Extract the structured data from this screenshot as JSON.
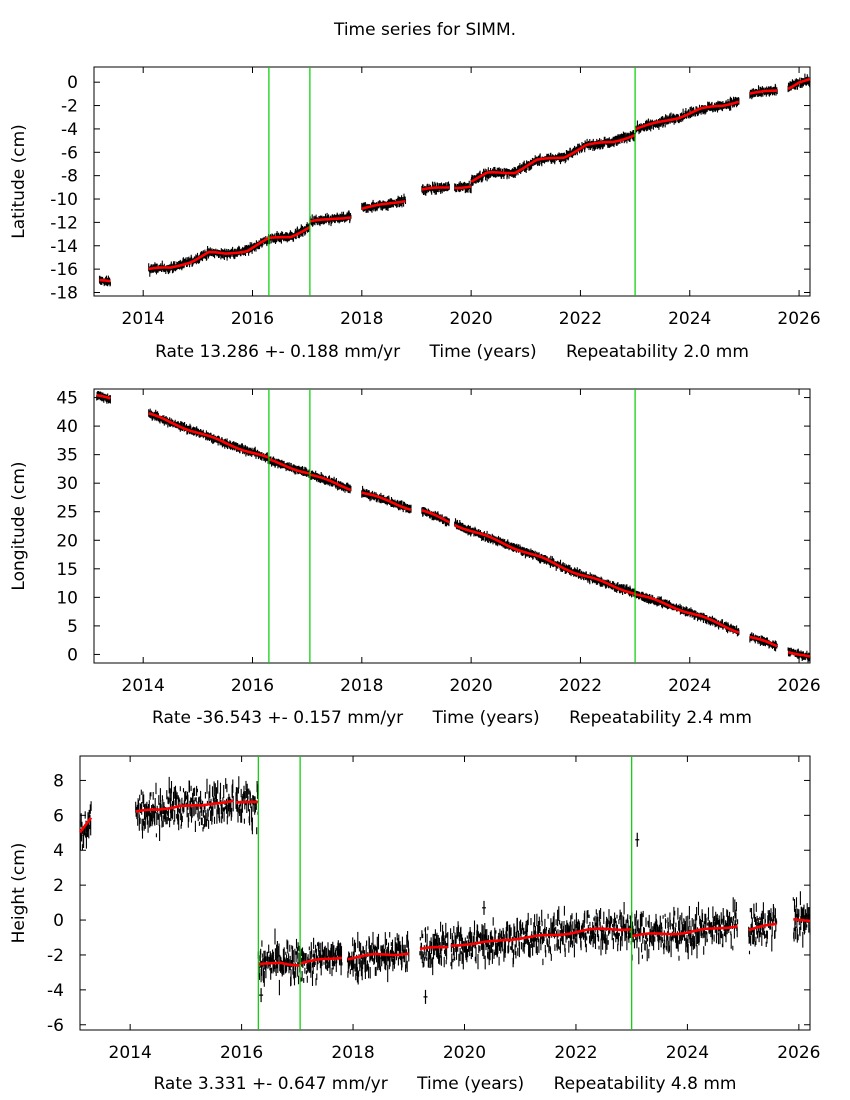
{
  "title": "Time series for SIMM.",
  "colors": {
    "data": "#000000",
    "model": "#ff0000",
    "offset_lines": "#00cc00",
    "frame": "#000000"
  },
  "chart_data": [
    {
      "type": "scatter",
      "ylabel": "Latitude (cm)",
      "xlabel": "Time (years)",
      "rate_text": "Rate 13.286 +- 0.188 mm/yr",
      "repeatability_text": "Repeatability 2.0 mm",
      "xlim": [
        2013.1,
        2026.2
      ],
      "ylim": [
        -18.3,
        1.3
      ],
      "xticks": [
        2014,
        2016,
        2018,
        2020,
        2022,
        2024,
        2026
      ],
      "yticks": [
        0,
        -2,
        -4,
        -6,
        -8,
        -10,
        -12,
        -14,
        -16,
        -18
      ],
      "offsets": [
        2016.3,
        2017.05,
        2023.0
      ],
      "segments": [
        {
          "start": 2013.2,
          "end": 2013.4,
          "points": [
            [
              2013.2,
              -17.0
            ],
            [
              2013.4,
              -17.1
            ]
          ]
        },
        {
          "start": 2014.1,
          "end": 2016.3,
          "points": [
            [
              2014.1,
              -16.0
            ],
            [
              2014.5,
              -15.9
            ],
            [
              2014.9,
              -15.3
            ],
            [
              2015.2,
              -14.6
            ],
            [
              2015.5,
              -14.7
            ],
            [
              2015.9,
              -14.4
            ],
            [
              2016.3,
              -13.4
            ]
          ]
        },
        {
          "start": 2016.3,
          "end": 2017.05,
          "points": [
            [
              2016.3,
              -13.4
            ],
            [
              2016.7,
              -13.2
            ],
            [
              2017.05,
              -12.4
            ]
          ]
        },
        {
          "start": 2017.05,
          "end": 2017.8,
          "points": [
            [
              2017.05,
              -11.9
            ],
            [
              2017.4,
              -11.8
            ],
            [
              2017.8,
              -11.5
            ]
          ]
        },
        {
          "start": 2018.0,
          "end": 2018.8,
          "points": [
            [
              2018.0,
              -10.8
            ],
            [
              2018.4,
              -10.5
            ],
            [
              2018.8,
              -10.1
            ]
          ]
        },
        {
          "start": 2019.1,
          "end": 2019.6,
          "points": [
            [
              2019.1,
              -9.2
            ],
            [
              2019.6,
              -9.0
            ]
          ]
        },
        {
          "start": 2019.7,
          "end": 2020.0,
          "points": [
            [
              2019.7,
              -9.0
            ],
            [
              2020.0,
              -8.9
            ]
          ]
        },
        {
          "start": 2020.0,
          "end": 2023.0,
          "points": [
            [
              2020.0,
              -8.5
            ],
            [
              2020.3,
              -7.8
            ],
            [
              2020.8,
              -7.7
            ],
            [
              2021.2,
              -6.7
            ],
            [
              2021.7,
              -6.4
            ],
            [
              2022.1,
              -5.4
            ],
            [
              2022.6,
              -5.1
            ],
            [
              2023.0,
              -4.5
            ]
          ]
        },
        {
          "start": 2023.0,
          "end": 2024.9,
          "points": [
            [
              2023.0,
              -4.0
            ],
            [
              2023.4,
              -3.5
            ],
            [
              2023.8,
              -3.0
            ],
            [
              2024.2,
              -2.3
            ],
            [
              2024.6,
              -2.0
            ],
            [
              2024.9,
              -1.6
            ]
          ]
        },
        {
          "start": 2025.1,
          "end": 2025.6,
          "points": [
            [
              2025.1,
              -1.0
            ],
            [
              2025.6,
              -0.7
            ]
          ]
        },
        {
          "start": 2025.8,
          "end": 2026.2,
          "points": [
            [
              2025.8,
              -0.5
            ],
            [
              2026.0,
              0.0
            ],
            [
              2026.2,
              0.2
            ]
          ]
        }
      ],
      "scatter": 0.25
    },
    {
      "type": "scatter",
      "ylabel": "Longitude (cm)",
      "xlabel": "Time (years)",
      "rate_text": "Rate -36.543 +- 0.157 mm/yr",
      "repeatability_text": "Repeatability 2.4 mm",
      "xlim": [
        2013.1,
        2026.2
      ],
      "ylim": [
        -1.5,
        46.5
      ],
      "xticks": [
        2014,
        2016,
        2018,
        2020,
        2022,
        2024,
        2026
      ],
      "yticks": [
        0,
        5,
        10,
        15,
        20,
        25,
        30,
        35,
        40,
        45
      ],
      "offsets": [
        2016.3,
        2017.05,
        2023.0
      ],
      "segments": [
        {
          "start": 2013.15,
          "end": 2013.4,
          "points": [
            [
              2013.15,
              45.3
            ],
            [
              2013.4,
              44.7
            ]
          ]
        },
        {
          "start": 2014.1,
          "end": 2016.3,
          "points": [
            [
              2014.1,
              42.2
            ],
            [
              2014.5,
              40.6
            ],
            [
              2015.0,
              38.9
            ],
            [
              2015.5,
              37.0
            ],
            [
              2016.0,
              35.4
            ],
            [
              2016.3,
              34.3
            ]
          ]
        },
        {
          "start": 2016.3,
          "end": 2017.05,
          "points": [
            [
              2016.3,
              34.0
            ],
            [
              2017.05,
              31.7
            ]
          ]
        },
        {
          "start": 2017.05,
          "end": 2017.8,
          "points": [
            [
              2017.05,
              31.5
            ],
            [
              2017.8,
              29.0
            ]
          ]
        },
        {
          "start": 2018.0,
          "end": 2018.9,
          "points": [
            [
              2018.0,
              28.4
            ],
            [
              2018.9,
              25.5
            ]
          ]
        },
        {
          "start": 2019.1,
          "end": 2019.6,
          "points": [
            [
              2019.1,
              25.2
            ],
            [
              2019.6,
              23.2
            ]
          ]
        },
        {
          "start": 2019.7,
          "end": 2023.0,
          "points": [
            [
              2019.7,
              22.8
            ],
            [
              2020.5,
              19.8
            ],
            [
              2021.3,
              16.8
            ],
            [
              2022.0,
              14.0
            ],
            [
              2022.6,
              12.0
            ],
            [
              2023.0,
              10.7
            ]
          ]
        },
        {
          "start": 2023.0,
          "end": 2024.9,
          "points": [
            [
              2023.0,
              10.6
            ],
            [
              2023.6,
              8.7
            ],
            [
              2024.2,
              6.6
            ],
            [
              2024.9,
              4.0
            ]
          ]
        },
        {
          "start": 2025.1,
          "end": 2025.6,
          "points": [
            [
              2025.1,
              3.0
            ],
            [
              2025.6,
              1.5
            ]
          ]
        },
        {
          "start": 2025.8,
          "end": 2026.2,
          "points": [
            [
              2025.8,
              0.6
            ],
            [
              2026.2,
              -0.5
            ]
          ]
        }
      ],
      "scatter": 0.35
    },
    {
      "type": "scatter",
      "ylabel": "Height (cm)",
      "xlabel": "Time (years)",
      "rate_text": "Rate 3.331 +- 0.647 mm/yr",
      "repeatability_text": "Repeatability 4.8 mm",
      "xlim": [
        2013.1,
        2026.2
      ],
      "ylim": [
        -6.3,
        9.4
      ],
      "xticks": [
        2014,
        2016,
        2018,
        2020,
        2022,
        2024,
        2026
      ],
      "yticks": [
        8,
        6,
        4,
        2,
        0,
        -2,
        -4,
        -6
      ],
      "offsets": [
        2016.3,
        2017.05,
        2023.0
      ],
      "segments": [
        {
          "start": 2013.1,
          "end": 2013.3,
          "points": [
            [
              2013.1,
              5.0
            ],
            [
              2013.3,
              5.8
            ]
          ]
        },
        {
          "start": 2014.1,
          "end": 2015.85,
          "points": [
            [
              2014.1,
              6.2
            ],
            [
              2014.5,
              6.3
            ],
            [
              2014.9,
              6.6
            ],
            [
              2015.3,
              6.5
            ],
            [
              2015.85,
              6.9
            ]
          ]
        },
        {
          "start": 2015.9,
          "end": 2016.3,
          "points": [
            [
              2015.9,
              6.8
            ],
            [
              2016.3,
              6.7
            ]
          ]
        },
        {
          "start": 2016.3,
          "end": 2017.05,
          "points": [
            [
              2016.3,
              -2.6
            ],
            [
              2016.7,
              -2.4
            ],
            [
              2017.05,
              -2.6
            ]
          ]
        },
        {
          "start": 2017.05,
          "end": 2017.8,
          "points": [
            [
              2017.05,
              -2.5
            ],
            [
              2017.4,
              -2.3
            ],
            [
              2017.8,
              -2.1
            ]
          ]
        },
        {
          "start": 2017.9,
          "end": 2019.0,
          "points": [
            [
              2017.9,
              -2.2
            ],
            [
              2018.4,
              -2.0
            ],
            [
              2019.0,
              -1.9
            ]
          ]
        },
        {
          "start": 2019.2,
          "end": 2019.7,
          "points": [
            [
              2019.2,
              -1.7
            ],
            [
              2019.7,
              -1.5
            ]
          ]
        },
        {
          "start": 2019.75,
          "end": 2023.0,
          "points": [
            [
              2019.75,
              -1.4
            ],
            [
              2020.2,
              -1.4
            ],
            [
              2020.7,
              -1.1
            ],
            [
              2021.2,
              -1.0
            ],
            [
              2021.7,
              -0.8
            ],
            [
              2022.2,
              -0.6
            ],
            [
              2022.6,
              -0.5
            ],
            [
              2023.0,
              -0.5
            ]
          ]
        },
        {
          "start": 2023.0,
          "end": 2024.9,
          "points": [
            [
              2023.0,
              -0.9
            ],
            [
              2023.5,
              -0.8
            ],
            [
              2024.0,
              -0.7
            ],
            [
              2024.5,
              -0.5
            ],
            [
              2024.9,
              -0.3
            ]
          ]
        },
        {
          "start": 2025.1,
          "end": 2025.6,
          "points": [
            [
              2025.1,
              -0.6
            ],
            [
              2025.6,
              -0.2
            ]
          ]
        },
        {
          "start": 2025.9,
          "end": 2026.2,
          "points": [
            [
              2025.9,
              0.1
            ],
            [
              2026.2,
              -0.1
            ]
          ]
        }
      ],
      "scatter": 1.1,
      "outliers": [
        [
          2023.1,
          4.6
        ],
        [
          2019.3,
          -4.4
        ],
        [
          2016.35,
          -4.3
        ],
        [
          2020.35,
          0.7
        ]
      ]
    }
  ]
}
